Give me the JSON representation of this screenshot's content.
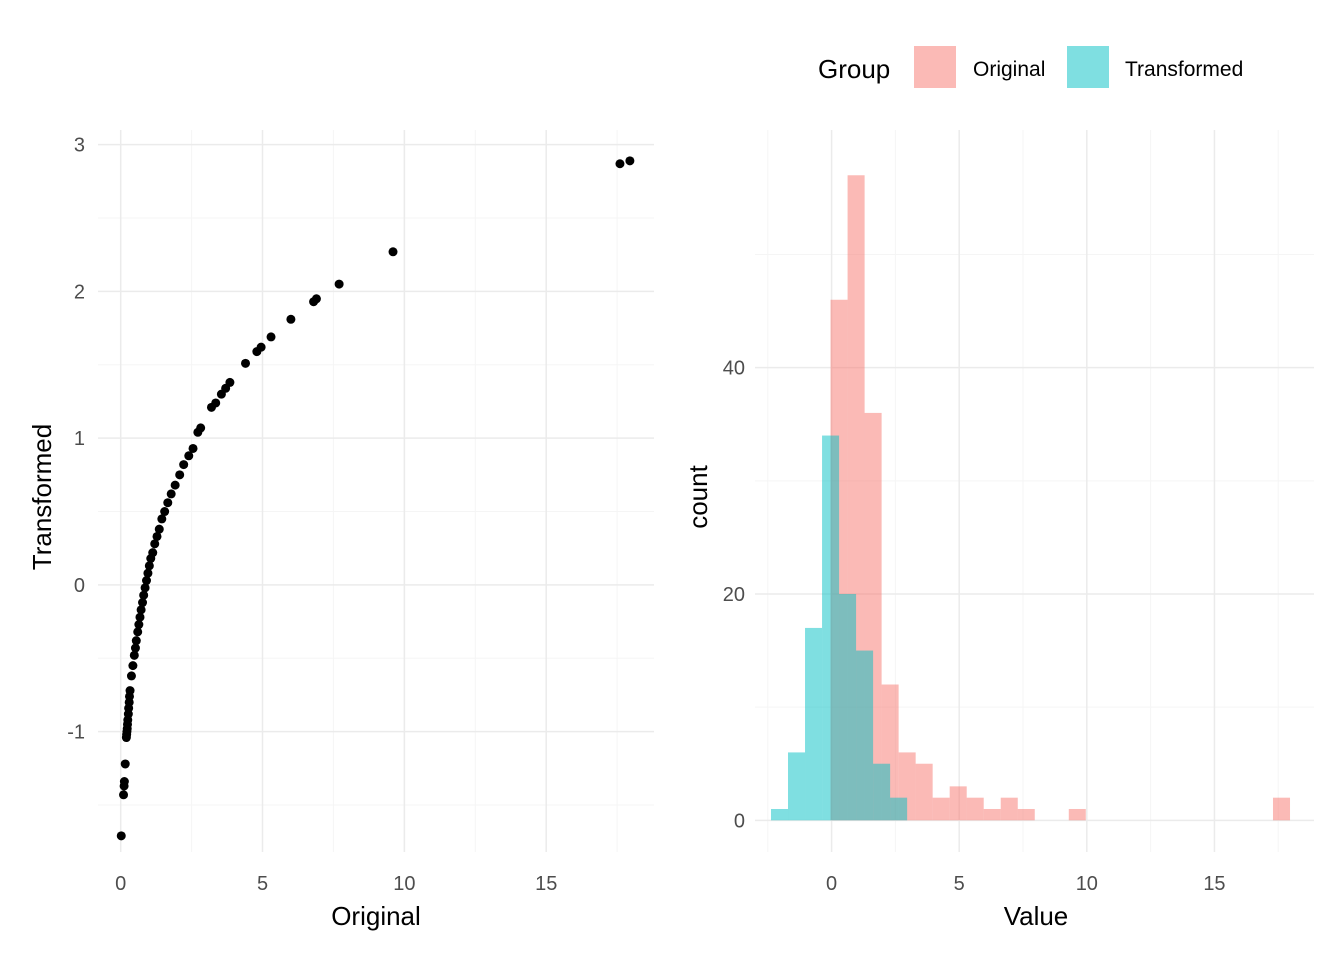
{
  "colors": {
    "original": "#F8766D",
    "transformed": "#00BFC4",
    "point": "#000000",
    "grid_major": "#EBEBEB",
    "grid_minor": "#F5F5F5"
  },
  "chart_data": [
    {
      "type": "scatter",
      "title": "",
      "xlabel": "Original",
      "ylabel": "Transformed",
      "xlim": [
        -0.8,
        18.8
      ],
      "ylim": [
        -1.82,
        3.1
      ],
      "x_ticks": [
        0,
        5,
        10,
        15
      ],
      "x_tick_labels": [
        "0",
        "5",
        "10",
        "15"
      ],
      "y_ticks": [
        -1,
        0,
        1,
        2,
        3
      ],
      "y_tick_labels": [
        "-1",
        "0",
        "1",
        "2",
        "3"
      ],
      "grid": true,
      "points": [
        {
          "x": 0.02,
          "y": -1.71
        },
        {
          "x": 0.1,
          "y": -1.43
        },
        {
          "x": 0.12,
          "y": -1.37
        },
        {
          "x": 0.13,
          "y": -1.34
        },
        {
          "x": 0.16,
          "y": -1.22
        },
        {
          "x": 0.2,
          "y": -1.04
        },
        {
          "x": 0.21,
          "y": -1.02
        },
        {
          "x": 0.22,
          "y": -1.0
        },
        {
          "x": 0.23,
          "y": -0.98
        },
        {
          "x": 0.24,
          "y": -0.95
        },
        {
          "x": 0.25,
          "y": -0.92
        },
        {
          "x": 0.27,
          "y": -0.88
        },
        {
          "x": 0.28,
          "y": -0.84
        },
        {
          "x": 0.3,
          "y": -0.8
        },
        {
          "x": 0.31,
          "y": -0.76
        },
        {
          "x": 0.33,
          "y": -0.72
        },
        {
          "x": 0.38,
          "y": -0.62
        },
        {
          "x": 0.43,
          "y": -0.55
        },
        {
          "x": 0.48,
          "y": -0.48
        },
        {
          "x": 0.52,
          "y": -0.43
        },
        {
          "x": 0.55,
          "y": -0.38
        },
        {
          "x": 0.6,
          "y": -0.32
        },
        {
          "x": 0.64,
          "y": -0.27
        },
        {
          "x": 0.68,
          "y": -0.22
        },
        {
          "x": 0.72,
          "y": -0.17
        },
        {
          "x": 0.77,
          "y": -0.12
        },
        {
          "x": 0.81,
          "y": -0.07
        },
        {
          "x": 0.86,
          "y": -0.02
        },
        {
          "x": 0.91,
          "y": 0.03
        },
        {
          "x": 0.96,
          "y": 0.08
        },
        {
          "x": 1.01,
          "y": 0.13
        },
        {
          "x": 1.06,
          "y": 0.18
        },
        {
          "x": 1.13,
          "y": 0.22
        },
        {
          "x": 1.2,
          "y": 0.28
        },
        {
          "x": 1.28,
          "y": 0.33
        },
        {
          "x": 1.36,
          "y": 0.38
        },
        {
          "x": 1.45,
          "y": 0.45
        },
        {
          "x": 1.55,
          "y": 0.5
        },
        {
          "x": 1.66,
          "y": 0.56
        },
        {
          "x": 1.78,
          "y": 0.62
        },
        {
          "x": 1.92,
          "y": 0.68
        },
        {
          "x": 2.08,
          "y": 0.75
        },
        {
          "x": 2.22,
          "y": 0.82
        },
        {
          "x": 2.4,
          "y": 0.88
        },
        {
          "x": 2.55,
          "y": 0.93
        },
        {
          "x": 2.72,
          "y": 1.04
        },
        {
          "x": 2.82,
          "y": 1.07
        },
        {
          "x": 3.2,
          "y": 1.21
        },
        {
          "x": 3.35,
          "y": 1.24
        },
        {
          "x": 3.55,
          "y": 1.3
        },
        {
          "x": 3.7,
          "y": 1.34
        },
        {
          "x": 3.85,
          "y": 1.38
        },
        {
          "x": 4.4,
          "y": 1.51
        },
        {
          "x": 4.8,
          "y": 1.59
        },
        {
          "x": 4.95,
          "y": 1.62
        },
        {
          "x": 5.3,
          "y": 1.69
        },
        {
          "x": 6.0,
          "y": 1.81
        },
        {
          "x": 6.8,
          "y": 1.93
        },
        {
          "x": 6.9,
          "y": 1.95
        },
        {
          "x": 7.7,
          "y": 2.05
        },
        {
          "x": 9.6,
          "y": 2.27
        },
        {
          "x": 17.6,
          "y": 2.87
        },
        {
          "x": 17.95,
          "y": 2.89
        }
      ]
    },
    {
      "type": "bar",
      "title": "",
      "xlabel": "Value",
      "ylabel": "count",
      "xlim": [
        -3.0,
        18.9
      ],
      "ylim": [
        -2.8,
        61
      ],
      "x_ticks": [
        0,
        5,
        10,
        15
      ],
      "x_tick_labels": [
        "0",
        "5",
        "10",
        "15"
      ],
      "y_ticks": [
        0,
        20,
        40
      ],
      "y_tick_labels": [
        "0",
        "20",
        "40"
      ],
      "grid": true,
      "bin_width": 0.667,
      "legend": {
        "title": "Group",
        "position": "top",
        "entries": [
          "Original",
          "Transformed"
        ]
      },
      "series": [
        {
          "name": "Original",
          "bins": [
            {
              "start": -0.04,
              "count": 46
            },
            {
              "start": 0.627,
              "count": 57
            },
            {
              "start": 1.293,
              "count": 36
            },
            {
              "start": 1.96,
              "count": 12
            },
            {
              "start": 2.627,
              "count": 6
            },
            {
              "start": 3.293,
              "count": 5
            },
            {
              "start": 3.96,
              "count": 2
            },
            {
              "start": 4.627,
              "count": 3
            },
            {
              "start": 5.293,
              "count": 2
            },
            {
              "start": 5.96,
              "count": 1
            },
            {
              "start": 6.627,
              "count": 2
            },
            {
              "start": 7.293,
              "count": 1
            },
            {
              "start": 9.293,
              "count": 1
            },
            {
              "start": 17.293,
              "count": 2
            }
          ]
        },
        {
          "name": "Transformed",
          "bins": [
            {
              "start": -2.373,
              "count": 1
            },
            {
              "start": -1.707,
              "count": 6
            },
            {
              "start": -1.04,
              "count": 17
            },
            {
              "start": -0.373,
              "count": 34
            },
            {
              "start": 0.293,
              "count": 20
            },
            {
              "start": 0.96,
              "count": 15
            },
            {
              "start": 1.627,
              "count": 5
            },
            {
              "start": 2.293,
              "count": 2
            }
          ]
        }
      ]
    }
  ]
}
